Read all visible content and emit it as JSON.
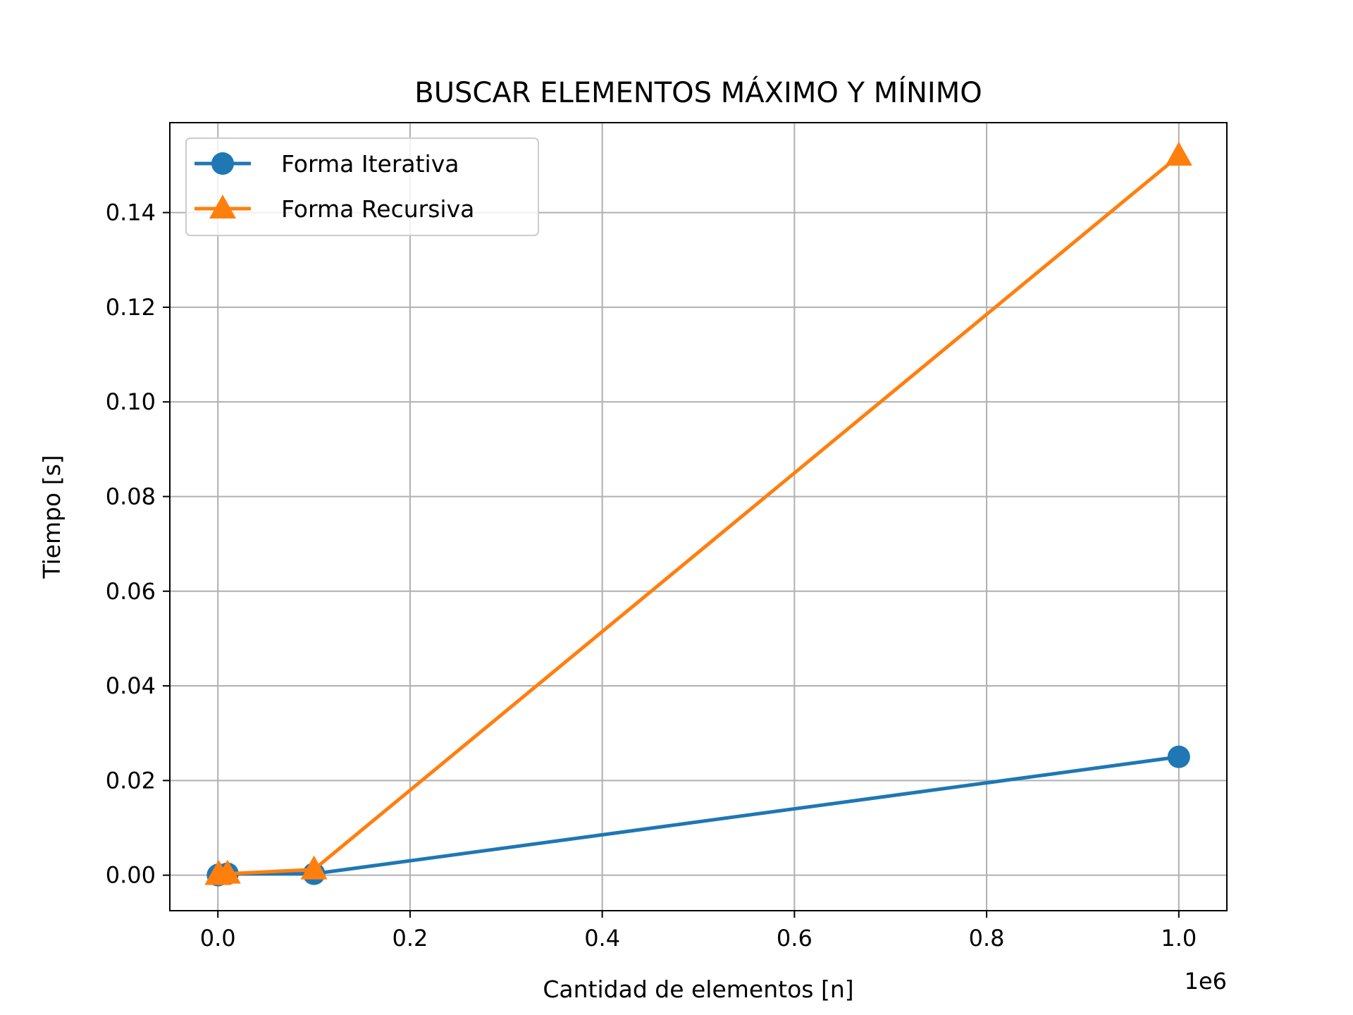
{
  "chart_data": {
    "type": "line",
    "title": "BUSCAR ELEMENTOS MÁXIMO Y MÍNIMO",
    "xlabel": "Cantidad de elementos [n]",
    "ylabel": "Tiempo [s]",
    "x_offset_label": "1e6",
    "x_scale": 1000000,
    "xlim": [
      -50000,
      1050000
    ],
    "ylim": [
      -0.0075,
      0.159
    ],
    "xticks": [
      0,
      200000,
      400000,
      600000,
      800000,
      1000000
    ],
    "xtick_labels": [
      "0.0",
      "0.2",
      "0.4",
      "0.6",
      "0.8",
      "1.0"
    ],
    "yticks": [
      0,
      0.02,
      0.04,
      0.06,
      0.08,
      0.1,
      0.12,
      0.14
    ],
    "ytick_labels": [
      "0.00",
      "0.02",
      "0.04",
      "0.06",
      "0.08",
      "0.10",
      "0.12",
      "0.14"
    ],
    "grid": true,
    "legend_position": "top-left",
    "series": [
      {
        "name": "Forma Iterativa",
        "color": "#1f77b4",
        "marker": "circle",
        "x": [
          100,
          1000,
          10000,
          100000,
          1000000
        ],
        "y": [
          1e-05,
          0.0001,
          0.0003,
          0.0003,
          0.025
        ]
      },
      {
        "name": "Forma Recursiva",
        "color": "#ff7f0e",
        "marker": "triangle",
        "x": [
          100,
          1000,
          10000,
          100000,
          1000000
        ],
        "y": [
          2e-05,
          0.0002,
          0.0003,
          0.0012,
          0.152
        ]
      }
    ]
  }
}
